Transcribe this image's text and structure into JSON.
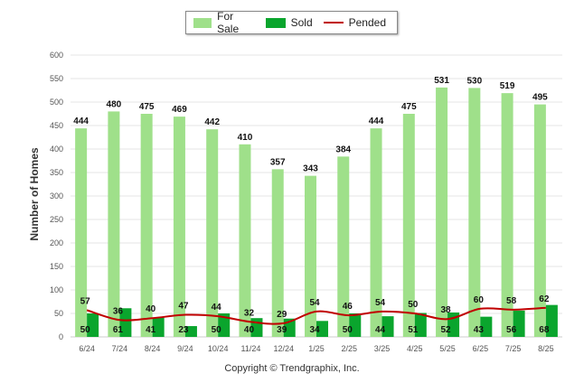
{
  "legend": {
    "for_sale": "For Sale",
    "sold": "Sold",
    "pended": "Pended"
  },
  "copyright": "Copyright © Trendgraphix, Inc.",
  "colors": {
    "for_sale": "#9fe08a",
    "sold": "#0aa52d",
    "pended": "#c00000"
  },
  "chart_data": {
    "type": "bar",
    "ylabel": "Number of Homes",
    "xlabel": "",
    "ylim": [
      0,
      600
    ],
    "yticks": [
      0,
      50,
      100,
      150,
      200,
      250,
      300,
      350,
      400,
      450,
      500,
      550,
      600
    ],
    "grid": true,
    "legend_position": "top",
    "categories": [
      "6/24",
      "7/24",
      "8/24",
      "9/24",
      "10/24",
      "11/24",
      "12/24",
      "1/25",
      "2/25",
      "3/25",
      "4/25",
      "5/25",
      "6/25",
      "7/25",
      "8/25"
    ],
    "series": [
      {
        "name": "For Sale",
        "type": "bar",
        "values": [
          444,
          480,
          475,
          469,
          442,
          410,
          357,
          343,
          384,
          444,
          475,
          531,
          530,
          519,
          495
        ]
      },
      {
        "name": "Sold",
        "type": "bar",
        "values": [
          50,
          61,
          41,
          23,
          50,
          40,
          39,
          34,
          50,
          44,
          51,
          52,
          43,
          56,
          68
        ]
      },
      {
        "name": "Pended",
        "type": "line",
        "values": [
          57,
          36,
          40,
          47,
          44,
          32,
          29,
          54,
          46,
          54,
          50,
          38,
          60,
          58,
          62
        ]
      }
    ]
  }
}
